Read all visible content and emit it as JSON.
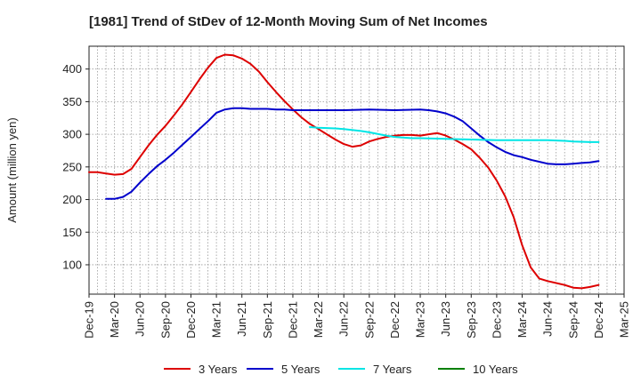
{
  "chart_data": {
    "type": "line",
    "title": "[1981]  Trend of StDev of 12-Month Moving Sum of Net Incomes",
    "ylabel": "Amount (million yen)",
    "xlabel": "",
    "ylim": [
      55,
      435
    ],
    "yticks": [
      100,
      150,
      200,
      250,
      300,
      350,
      400
    ],
    "xticks": [
      "Dec-19",
      "Mar-20",
      "Jun-20",
      "Sep-20",
      "Dec-20",
      "Mar-21",
      "Jun-21",
      "Sep-21",
      "Dec-21",
      "Mar-22",
      "Jun-22",
      "Sep-22",
      "Dec-22",
      "Mar-23",
      "Jun-23",
      "Sep-23",
      "Dec-23",
      "Mar-24",
      "Jun-24",
      "Sep-24",
      "Dec-24",
      "Mar-25"
    ],
    "grid": true,
    "legend_position": "bottom",
    "series": [
      {
        "name": "3 Years",
        "color": "#dd0000",
        "values": [
          {
            "x": "Dec-19",
            "y": 242
          },
          {
            "x": "Jan-20",
            "y": 242
          },
          {
            "x": "Feb-20",
            "y": 240
          },
          {
            "x": "Mar-20",
            "y": 238
          },
          {
            "x": "Apr-20",
            "y": 239
          },
          {
            "x": "May-20",
            "y": 247
          },
          {
            "x": "Jun-20",
            "y": 265
          },
          {
            "x": "Jul-20",
            "y": 283
          },
          {
            "x": "Aug-20",
            "y": 299
          },
          {
            "x": "Sep-20",
            "y": 313
          },
          {
            "x": "Oct-20",
            "y": 329
          },
          {
            "x": "Nov-20",
            "y": 346
          },
          {
            "x": "Dec-20",
            "y": 365
          },
          {
            "x": "Jan-21",
            "y": 384
          },
          {
            "x": "Feb-21",
            "y": 402
          },
          {
            "x": "Mar-21",
            "y": 417
          },
          {
            "x": "Apr-21",
            "y": 422
          },
          {
            "x": "May-21",
            "y": 421
          },
          {
            "x": "Jun-21",
            "y": 416
          },
          {
            "x": "Jul-21",
            "y": 408
          },
          {
            "x": "Aug-21",
            "y": 396
          },
          {
            "x": "Sep-21",
            "y": 380
          },
          {
            "x": "Oct-21",
            "y": 365
          },
          {
            "x": "Nov-21",
            "y": 351
          },
          {
            "x": "Dec-21",
            "y": 338
          },
          {
            "x": "Jan-22",
            "y": 326
          },
          {
            "x": "Feb-22",
            "y": 316
          },
          {
            "x": "Mar-22",
            "y": 308
          },
          {
            "x": "Apr-22",
            "y": 300
          },
          {
            "x": "May-22",
            "y": 292
          },
          {
            "x": "Jun-22",
            "y": 285
          },
          {
            "x": "Jul-22",
            "y": 281
          },
          {
            "x": "Aug-22",
            "y": 283
          },
          {
            "x": "Sep-22",
            "y": 289
          },
          {
            "x": "Oct-22",
            "y": 293
          },
          {
            "x": "Nov-22",
            "y": 296
          },
          {
            "x": "Dec-22",
            "y": 298
          },
          {
            "x": "Jan-23",
            "y": 299
          },
          {
            "x": "Feb-23",
            "y": 299
          },
          {
            "x": "Mar-23",
            "y": 298
          },
          {
            "x": "Apr-23",
            "y": 300
          },
          {
            "x": "May-23",
            "y": 302
          },
          {
            "x": "Jun-23",
            "y": 298
          },
          {
            "x": "Jul-23",
            "y": 292
          },
          {
            "x": "Aug-23",
            "y": 285
          },
          {
            "x": "Sep-23",
            "y": 277
          },
          {
            "x": "Oct-23",
            "y": 264
          },
          {
            "x": "Nov-23",
            "y": 249
          },
          {
            "x": "Dec-23",
            "y": 229
          },
          {
            "x": "Jan-24",
            "y": 205
          },
          {
            "x": "Feb-24",
            "y": 173
          },
          {
            "x": "Mar-24",
            "y": 130
          },
          {
            "x": "Apr-24",
            "y": 96
          },
          {
            "x": "May-24",
            "y": 79
          },
          {
            "x": "Jun-24",
            "y": 75
          },
          {
            "x": "Jul-24",
            "y": 72
          },
          {
            "x": "Aug-24",
            "y": 69
          },
          {
            "x": "Sep-24",
            "y": 65
          },
          {
            "x": "Oct-24",
            "y": 64
          },
          {
            "x": "Nov-24",
            "y": 66
          },
          {
            "x": "Dec-24",
            "y": 69
          }
        ]
      },
      {
        "name": "5 Years",
        "color": "#0000cc",
        "values": [
          {
            "x": "Feb-20",
            "y": 201
          },
          {
            "x": "Mar-20",
            "y": 201
          },
          {
            "x": "Apr-20",
            "y": 204
          },
          {
            "x": "May-20",
            "y": 212
          },
          {
            "x": "Jun-20",
            "y": 226
          },
          {
            "x": "Jul-20",
            "y": 239
          },
          {
            "x": "Aug-20",
            "y": 251
          },
          {
            "x": "Sep-20",
            "y": 261
          },
          {
            "x": "Oct-20",
            "y": 272
          },
          {
            "x": "Nov-20",
            "y": 284
          },
          {
            "x": "Dec-20",
            "y": 296
          },
          {
            "x": "Jan-21",
            "y": 308
          },
          {
            "x": "Feb-21",
            "y": 320
          },
          {
            "x": "Mar-21",
            "y": 333
          },
          {
            "x": "Apr-21",
            "y": 338
          },
          {
            "x": "May-21",
            "y": 340
          },
          {
            "x": "Jun-21",
            "y": 340
          },
          {
            "x": "Jul-21",
            "y": 339
          },
          {
            "x": "Aug-21",
            "y": 339
          },
          {
            "x": "Sep-21",
            "y": 339
          },
          {
            "x": "Oct-21",
            "y": 338
          },
          {
            "x": "Nov-21",
            "y": 338
          },
          {
            "x": "Dec-21",
            "y": 337
          },
          {
            "x": "Mar-22",
            "y": 337
          },
          {
            "x": "Jun-22",
            "y": 337
          },
          {
            "x": "Sep-22",
            "y": 338
          },
          {
            "x": "Dec-22",
            "y": 337
          },
          {
            "x": "Mar-23",
            "y": 338
          },
          {
            "x": "Apr-23",
            "y": 337
          },
          {
            "x": "May-23",
            "y": 335
          },
          {
            "x": "Jun-23",
            "y": 332
          },
          {
            "x": "Jul-23",
            "y": 327
          },
          {
            "x": "Aug-23",
            "y": 320
          },
          {
            "x": "Sep-23",
            "y": 309
          },
          {
            "x": "Oct-23",
            "y": 298
          },
          {
            "x": "Nov-23",
            "y": 288
          },
          {
            "x": "Dec-23",
            "y": 280
          },
          {
            "x": "Jan-24",
            "y": 273
          },
          {
            "x": "Feb-24",
            "y": 268
          },
          {
            "x": "Mar-24",
            "y": 265
          },
          {
            "x": "Apr-24",
            "y": 261
          },
          {
            "x": "May-24",
            "y": 258
          },
          {
            "x": "Jun-24",
            "y": 255
          },
          {
            "x": "Jul-24",
            "y": 254
          },
          {
            "x": "Aug-24",
            "y": 254
          },
          {
            "x": "Sep-24",
            "y": 255
          },
          {
            "x": "Oct-24",
            "y": 256
          },
          {
            "x": "Nov-24",
            "y": 257
          },
          {
            "x": "Dec-24",
            "y": 259
          }
        ]
      },
      {
        "name": "7 Years",
        "color": "#00e5e5",
        "values": [
          {
            "x": "Feb-22",
            "y": 311
          },
          {
            "x": "Mar-22",
            "y": 310
          },
          {
            "x": "May-22",
            "y": 309
          },
          {
            "x": "Jun-22",
            "y": 308
          },
          {
            "x": "Aug-22",
            "y": 305
          },
          {
            "x": "Sep-22",
            "y": 303
          },
          {
            "x": "Nov-22",
            "y": 298
          },
          {
            "x": "Dec-22",
            "y": 296
          },
          {
            "x": "Feb-23",
            "y": 294
          },
          {
            "x": "Mar-23",
            "y": 294
          },
          {
            "x": "Jun-23",
            "y": 293
          },
          {
            "x": "Sep-23",
            "y": 292
          },
          {
            "x": "Dec-23",
            "y": 291
          },
          {
            "x": "Mar-24",
            "y": 291
          },
          {
            "x": "Jun-24",
            "y": 291
          },
          {
            "x": "Aug-24",
            "y": 290
          },
          {
            "x": "Sep-24",
            "y": 289
          },
          {
            "x": "Nov-24",
            "y": 288
          },
          {
            "x": "Dec-24",
            "y": 288
          }
        ]
      },
      {
        "name": "10 Years",
        "color": "#008000",
        "values": []
      }
    ]
  }
}
